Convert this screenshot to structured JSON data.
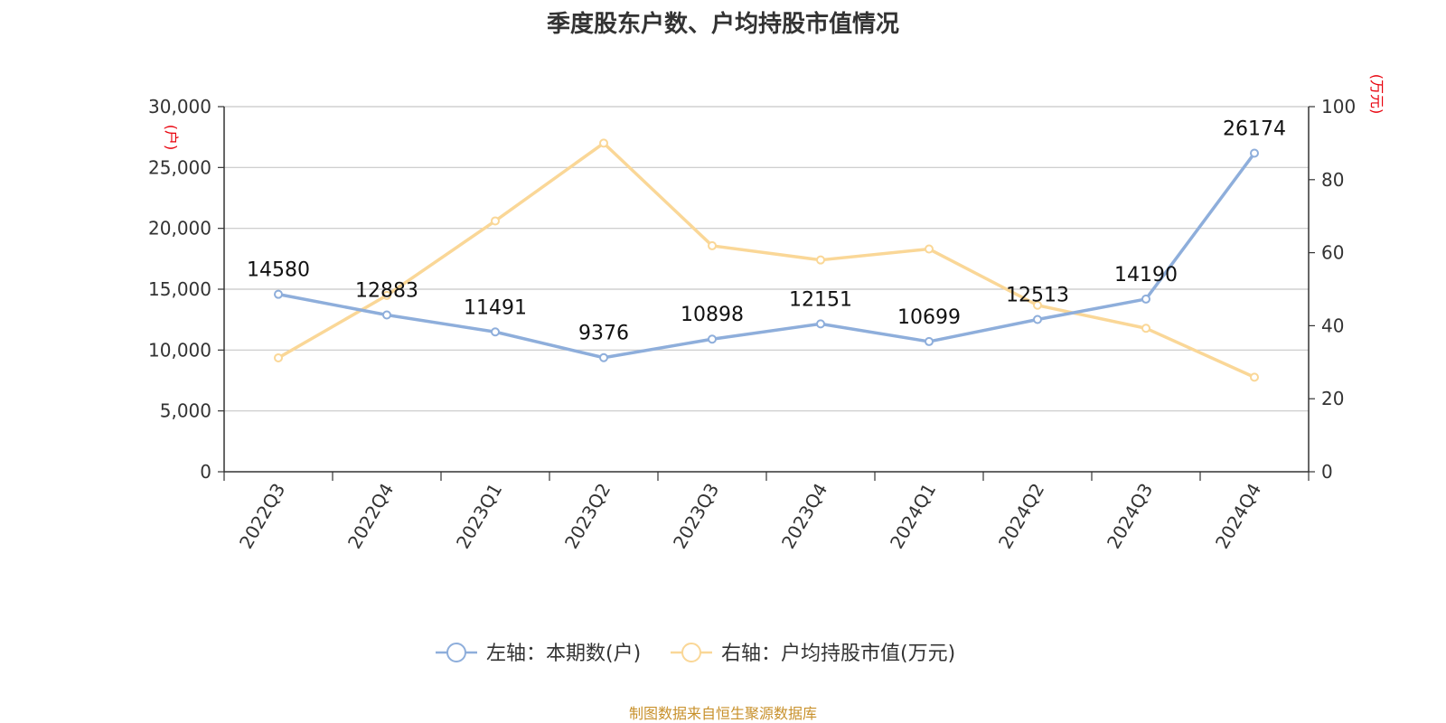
{
  "title": "季度股东户数、户均持股市值情况",
  "source": "制图数据来自恒生聚源数据库",
  "chart_data": {
    "type": "line",
    "title": "季度股东户数、户均持股市值情况",
    "categories": [
      "2022Q3",
      "2022Q4",
      "2023Q1",
      "2023Q2",
      "2023Q3",
      "2023Q4",
      "2024Q1",
      "2024Q2",
      "2024Q3",
      "2024Q4"
    ],
    "y_left": {
      "unit": "(户)",
      "min": 0,
      "max": 30000,
      "ticks": [
        0,
        5000,
        10000,
        15000,
        20000,
        25000,
        30000
      ],
      "tick_labels": [
        "0",
        "5,000",
        "10,000",
        "15,000",
        "20,000",
        "25,000",
        "30,000"
      ]
    },
    "y_right": {
      "unit": "(万元)",
      "min": 0,
      "max": 100,
      "ticks": [
        0,
        20,
        40,
        60,
        80,
        100
      ],
      "tick_labels": [
        "0",
        "20",
        "40",
        "60",
        "80",
        "100"
      ]
    },
    "series": [
      {
        "name": "左轴：本期数(户)",
        "axis": "left",
        "color": "#8eaedb",
        "values": [
          14580,
          12883,
          11491,
          9376,
          10898,
          12151,
          10699,
          12513,
          14190,
          26174
        ],
        "labels": [
          "14580",
          "12883",
          "11491",
          "9376",
          "10898",
          "12151",
          "10699",
          "12513",
          "14190",
          "26174"
        ]
      },
      {
        "name": "右轴：户均持股市值(万元)",
        "axis": "right",
        "color": "#fad797",
        "values": [
          31.2,
          48.3,
          68.7,
          90.0,
          61.9,
          58.0,
          61.0,
          45.6,
          39.3,
          25.9
        ]
      }
    ],
    "grid": true,
    "legend_position": "bottom-center"
  }
}
